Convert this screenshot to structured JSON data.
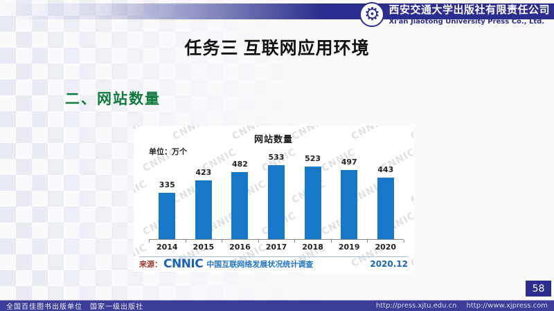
{
  "header": {
    "company_cn": "西安交通大学出版社有限责任公司",
    "company_en": "Xi'an Jiaotong University Press Co., Ltd.",
    "logo_icon": "gear-ship-logo"
  },
  "slide": {
    "title": "任务三 互联网应用环境",
    "section_heading": "二、网站数量",
    "page_number": "58"
  },
  "chart_data": {
    "type": "bar",
    "title": "网站数量",
    "unit_label": "单位：万个",
    "categories": [
      "2014",
      "2015",
      "2016",
      "2017",
      "2018",
      "2019",
      "2020"
    ],
    "values": [
      335,
      423,
      482,
      533,
      523,
      497,
      443
    ],
    "ylim": [
      0,
      533
    ],
    "xlabel": "",
    "ylabel": "万个",
    "grid": false,
    "legend": "none",
    "bar_color": "#1578c8",
    "watermark": "CNNIC",
    "source_prefix": "来源：",
    "source_logo": "CNNIC",
    "source_text": "中国互联网络发展状况统计调查",
    "source_date": "2020.12"
  },
  "footer": {
    "left_text": "全国百佳图书出版单位　国家一级出版社",
    "url_press": "http://press.xjtu.edu.cn",
    "url_xjpress": "http://www.xjpress.com"
  },
  "colors": {
    "brand_blue": "#2b2e8e",
    "footer_blue": "#3c3c99",
    "bar_blue": "#1578c8",
    "cnnic_blue": "#1b63b7",
    "heading_green": "#0e7a3c",
    "source_red": "#a03a30"
  }
}
